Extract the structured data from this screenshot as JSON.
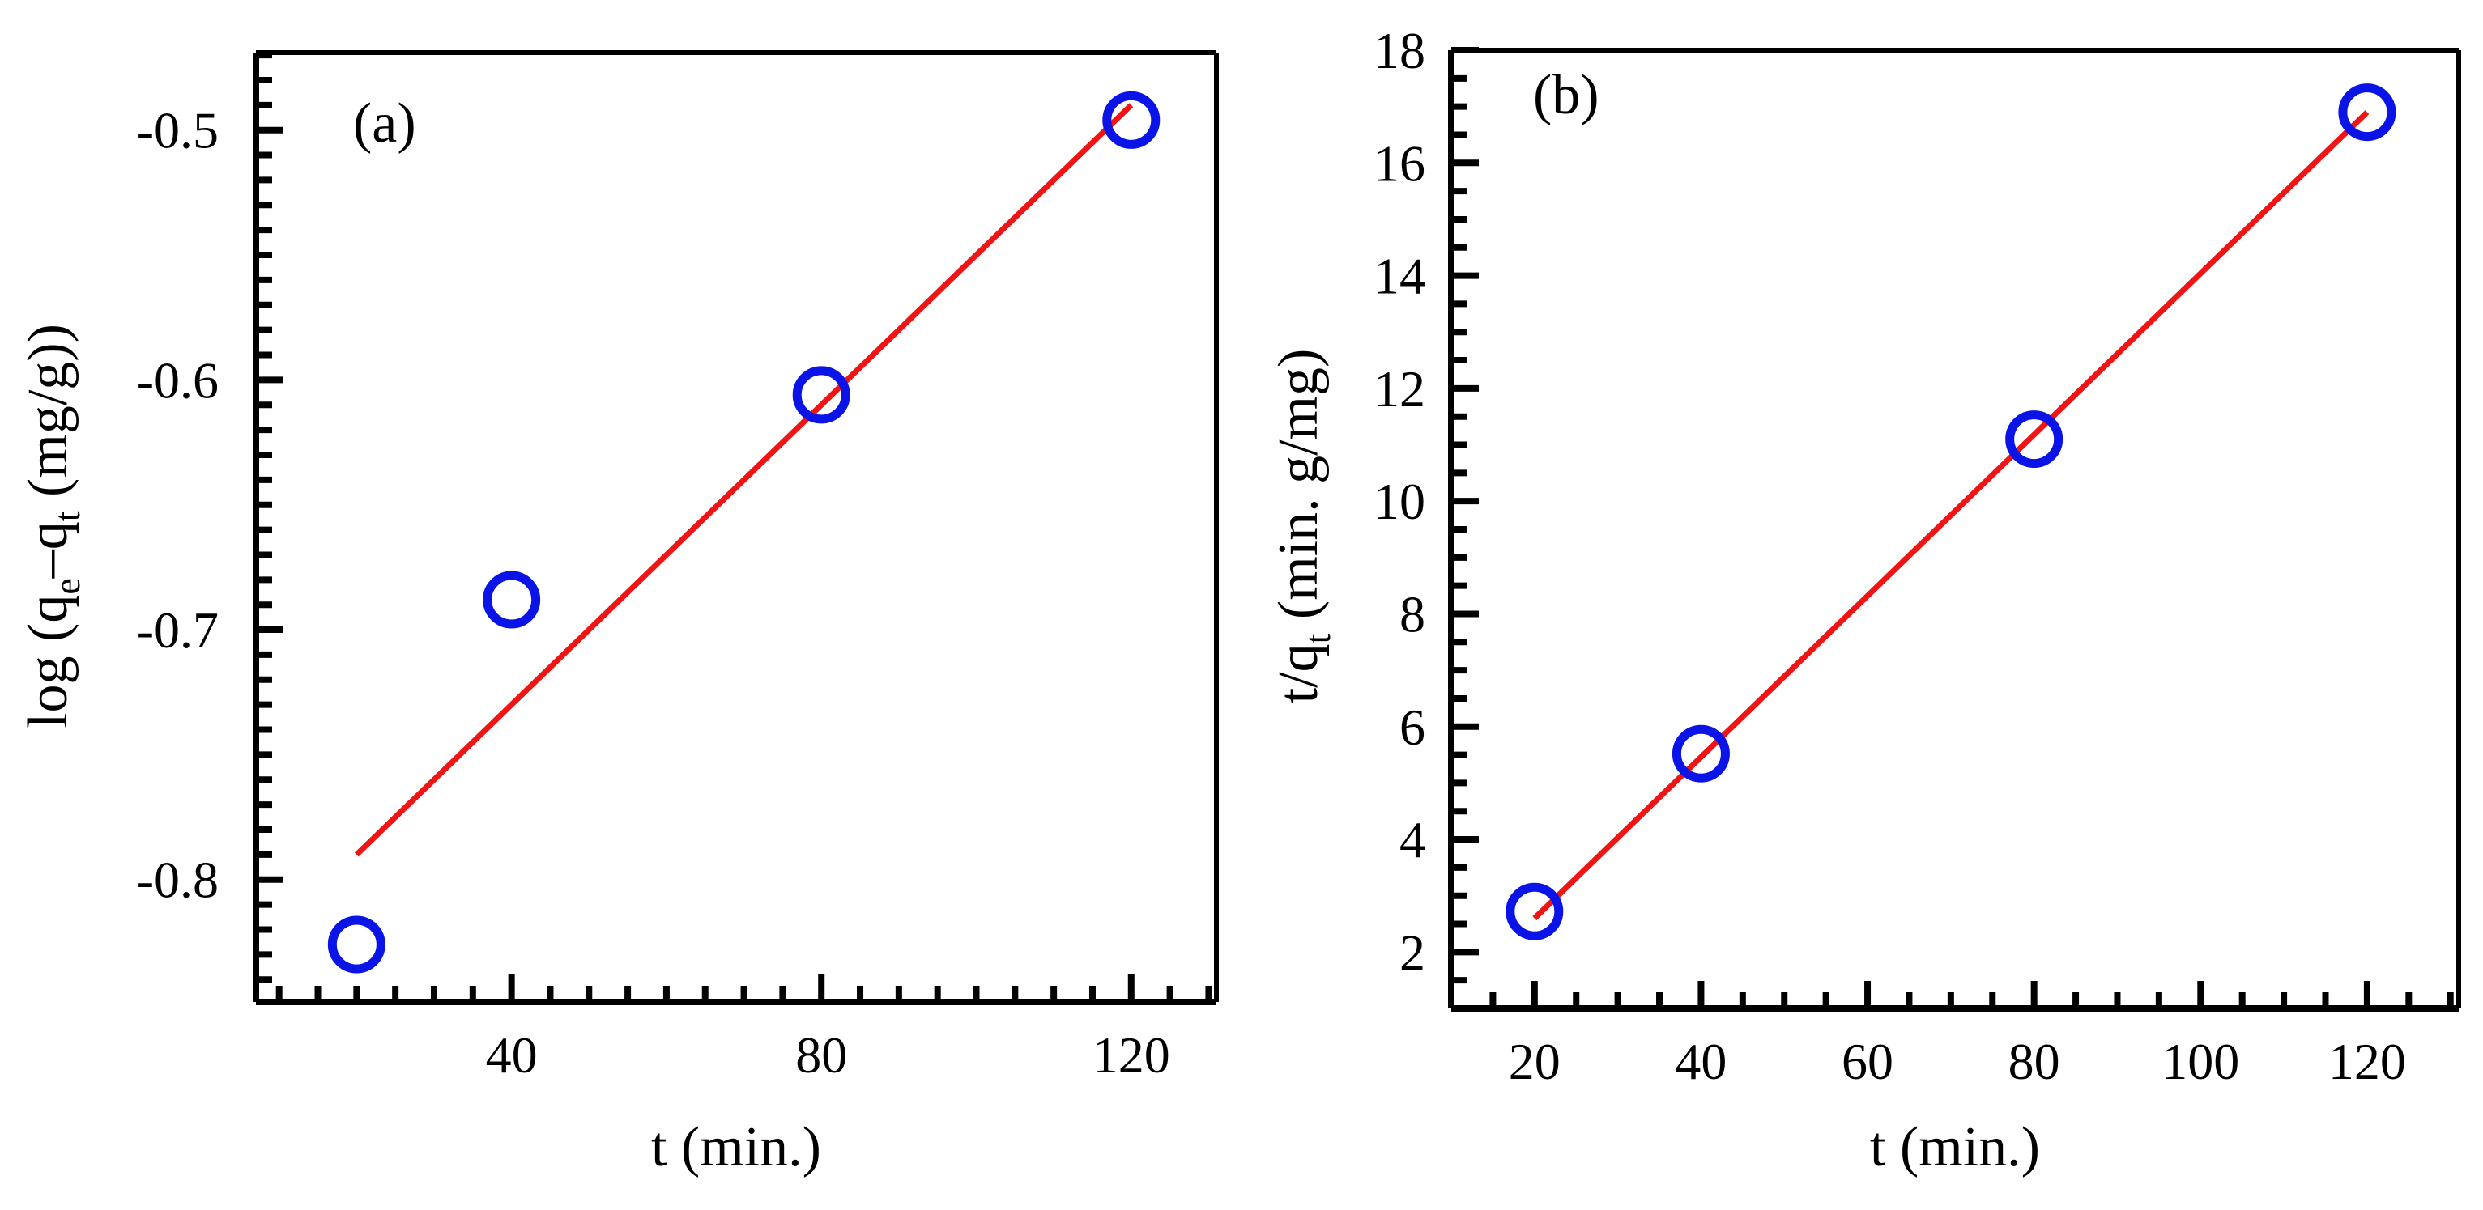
{
  "chart_data": [
    {
      "type": "scatter",
      "panel_label": "(a)",
      "xlabel": "t (min.)",
      "ylabel": {
        "prefix": "log (q",
        "sub1": "e",
        "middle": "–q",
        "sub2": "t",
        "suffix": " (mg/g))"
      },
      "xlim": [
        7,
        131
      ],
      "ylim": [
        -0.849,
        -0.469
      ],
      "x_major_ticks": [
        40,
        80,
        120
      ],
      "x_tick_labels": [
        "40",
        "80",
        "120"
      ],
      "x_minor_step": 5,
      "y_major_ticks": [
        -0.5,
        -0.6,
        -0.7,
        -0.8
      ],
      "y_tick_labels": [
        "-0.5",
        "-0.6",
        "-0.7",
        "-0.8"
      ],
      "y_minor_step": 0.01,
      "grid": false,
      "colors": {
        "marker": "#0a14e6",
        "fit": "#f01414",
        "axis": "#000000"
      },
      "series": [
        {
          "name": "experimental",
          "kind": "marker",
          "x": [
            20,
            40,
            80,
            120
          ],
          "y": [
            -0.826,
            -0.688,
            -0.606,
            -0.496
          ]
        },
        {
          "name": "linear fit",
          "kind": "line",
          "x": [
            20,
            120
          ],
          "y": [
            -0.79,
            -0.49
          ]
        }
      ]
    },
    {
      "type": "scatter",
      "panel_label": "(b)",
      "xlabel": "t (min.)",
      "ylabel": {
        "prefix": "t/q",
        "sub1": "t",
        "suffix": " (min. g/mg)"
      },
      "xlim": [
        10,
        131
      ],
      "ylim": [
        1,
        18
      ],
      "x_major_ticks": [
        20,
        40,
        60,
        80,
        100,
        120
      ],
      "x_tick_labels": [
        "20",
        "40",
        "60",
        "80",
        "100",
        "120"
      ],
      "x_minor_step": 5,
      "y_major_ticks": [
        2,
        4,
        6,
        8,
        10,
        12,
        14,
        16,
        18
      ],
      "y_tick_labels": [
        "2",
        "4",
        "6",
        "8",
        "10",
        "12",
        "14",
        "16",
        "18"
      ],
      "y_minor_step": 0.5,
      "grid": false,
      "colors": {
        "marker": "#0a14e6",
        "fit": "#f01414",
        "axis": "#000000"
      },
      "series": [
        {
          "name": "experimental",
          "kind": "marker",
          "x": [
            20,
            40,
            80,
            120
          ],
          "y": [
            2.72,
            5.52,
            11.1,
            16.9
          ]
        },
        {
          "name": "linear fit",
          "kind": "line",
          "x": [
            20,
            120
          ],
          "y": [
            2.6,
            16.9
          ]
        }
      ]
    }
  ]
}
